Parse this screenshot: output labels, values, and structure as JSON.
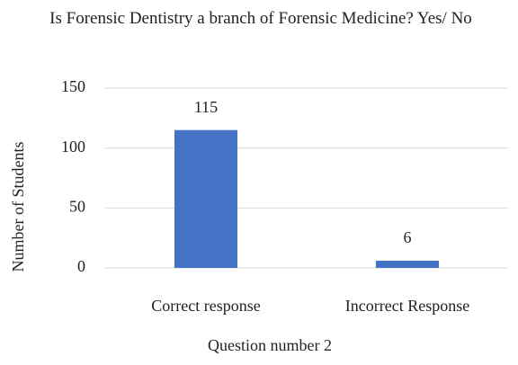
{
  "chart_data": {
    "type": "bar",
    "title": "Is Forensic Dentistry a branch of Forensic Medicine? Yes/ No",
    "x_label": "Question number 2",
    "y_label": "Number of Students",
    "categories": [
      "Correct response",
      "Incorrect Response"
    ],
    "values": [
      115,
      6
    ],
    "color": "#4472c4",
    "ylim": [
      0,
      150
    ],
    "yticks": [
      0,
      50,
      100,
      150
    ],
    "grid": true,
    "data_labels": true
  }
}
